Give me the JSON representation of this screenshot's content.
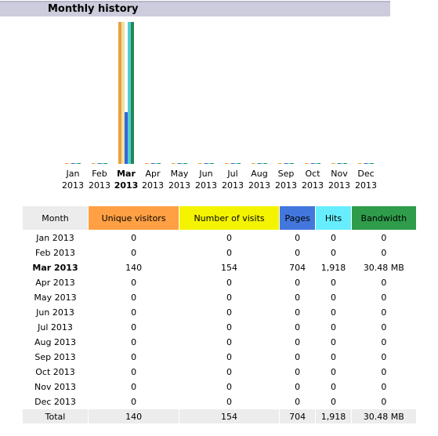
{
  "title": "Monthly history",
  "chart_data": {
    "type": "bar",
    "categories": [
      "Jan 2013",
      "Feb 2013",
      "Mar 2013",
      "Apr 2013",
      "May 2013",
      "Jun 2013",
      "Jul 2013",
      "Aug 2013",
      "Sep 2013",
      "Oct 2013",
      "Nov 2013",
      "Dec 2013"
    ],
    "month_labels": [
      {
        "mon": "Jan",
        "year": "2013"
      },
      {
        "mon": "Feb",
        "year": "2013"
      },
      {
        "mon": "Mar",
        "year": "2013"
      },
      {
        "mon": "Apr",
        "year": "2013"
      },
      {
        "mon": "May",
        "year": "2013"
      },
      {
        "mon": "Jun",
        "year": "2013"
      },
      {
        "mon": "Jul",
        "year": "2013"
      },
      {
        "mon": "Aug",
        "year": "2013"
      },
      {
        "mon": "Sep",
        "year": "2013"
      },
      {
        "mon": "Oct",
        "year": "2013"
      },
      {
        "mon": "Nov",
        "year": "2013"
      },
      {
        "mon": "Dec",
        "year": "2013"
      }
    ],
    "highlight_index": 2,
    "series": [
      {
        "name": "Unique visitors",
        "color": "#e8a040",
        "values": [
          0,
          0,
          140,
          0,
          0,
          0,
          0,
          0,
          0,
          0,
          0,
          0
        ],
        "max": 140
      },
      {
        "name": "Number of visits",
        "color": "#f0e0a0",
        "values": [
          0,
          0,
          154,
          0,
          0,
          0,
          0,
          0,
          0,
          0,
          0,
          0
        ],
        "max": 154
      },
      {
        "name": "Pages",
        "color": "#3366dd",
        "values": [
          0,
          0,
          704,
          0,
          0,
          0,
          0,
          0,
          0,
          0,
          0,
          0
        ],
        "max": 1918
      },
      {
        "name": "Hits",
        "color": "#55cccc",
        "values": [
          0,
          0,
          1918,
          0,
          0,
          0,
          0,
          0,
          0,
          0,
          0,
          0
        ],
        "max": 1918
      },
      {
        "name": "Bandwidth",
        "color": "#228855",
        "values": [
          0,
          0,
          30.48,
          0,
          0,
          0,
          0,
          0,
          0,
          0,
          0,
          0
        ],
        "max": 30.48
      }
    ]
  },
  "table": {
    "headers": {
      "month": "Month",
      "visitors": "Unique visitors",
      "visits": "Number of visits",
      "pages": "Pages",
      "hits": "Hits",
      "bandwidth": "Bandwidth"
    },
    "rows": [
      {
        "month": "Jan 2013",
        "visitors": "0",
        "visits": "0",
        "pages": "0",
        "hits": "0",
        "bandwidth": "0"
      },
      {
        "month": "Feb 2013",
        "visitors": "0",
        "visits": "0",
        "pages": "0",
        "hits": "0",
        "bandwidth": "0"
      },
      {
        "month": "Mar 2013",
        "visitors": "140",
        "visits": "154",
        "pages": "704",
        "hits": "1,918",
        "bandwidth": "30.48 MB"
      },
      {
        "month": "Apr 2013",
        "visitors": "0",
        "visits": "0",
        "pages": "0",
        "hits": "0",
        "bandwidth": "0"
      },
      {
        "month": "May 2013",
        "visitors": "0",
        "visits": "0",
        "pages": "0",
        "hits": "0",
        "bandwidth": "0"
      },
      {
        "month": "Jun 2013",
        "visitors": "0",
        "visits": "0",
        "pages": "0",
        "hits": "0",
        "bandwidth": "0"
      },
      {
        "month": "Jul 2013",
        "visitors": "0",
        "visits": "0",
        "pages": "0",
        "hits": "0",
        "bandwidth": "0"
      },
      {
        "month": "Aug 2013",
        "visitors": "0",
        "visits": "0",
        "pages": "0",
        "hits": "0",
        "bandwidth": "0"
      },
      {
        "month": "Sep 2013",
        "visitors": "0",
        "visits": "0",
        "pages": "0",
        "hits": "0",
        "bandwidth": "0"
      },
      {
        "month": "Oct 2013",
        "visitors": "0",
        "visits": "0",
        "pages": "0",
        "hits": "0",
        "bandwidth": "0"
      },
      {
        "month": "Nov 2013",
        "visitors": "0",
        "visits": "0",
        "pages": "0",
        "hits": "0",
        "bandwidth": "0"
      },
      {
        "month": "Dec 2013",
        "visitors": "0",
        "visits": "0",
        "pages": "0",
        "hits": "0",
        "bandwidth": "0"
      }
    ],
    "total": {
      "month": "Total",
      "visitors": "140",
      "visits": "154",
      "pages": "704",
      "hits": "1,918",
      "bandwidth": "30.48 MB"
    }
  }
}
